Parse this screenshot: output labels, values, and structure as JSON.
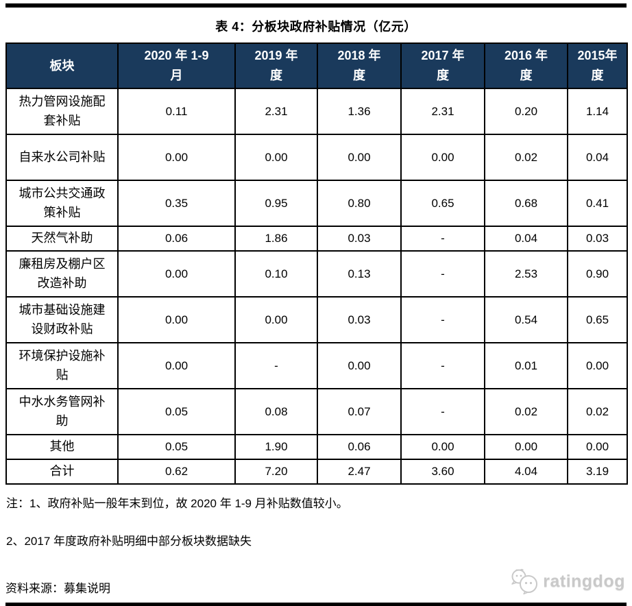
{
  "title": "表 4：分板块政府补贴情况（亿元）",
  "table": {
    "header": {
      "col0": "板块",
      "periods": [
        {
          "line1": "2020 年 1-9",
          "line2": "月"
        },
        {
          "line1": "2019 年",
          "line2": "度"
        },
        {
          "line1": "2018 年",
          "line2": "度"
        },
        {
          "line1": "2017 年",
          "line2": "度"
        },
        {
          "line1": "2016 年",
          "line2": "度"
        },
        {
          "line1": "2015年",
          "line2": "度"
        }
      ]
    },
    "rows": [
      {
        "label": "热力管网设施配套补贴",
        "values": [
          "0.11",
          "2.31",
          "1.36",
          "2.31",
          "0.20",
          "1.14"
        ],
        "tall": true
      },
      {
        "label": "自来水公司补贴",
        "values": [
          "0.00",
          "0.00",
          "0.00",
          "0.00",
          "0.02",
          "0.04"
        ],
        "tall": true
      },
      {
        "label": "城市公共交通政策补贴",
        "values": [
          "0.35",
          "0.95",
          "0.80",
          "0.65",
          "0.68",
          "0.41"
        ],
        "tall": true
      },
      {
        "label": "天然气补助",
        "values": [
          "0.06",
          "1.86",
          "0.03",
          "-",
          "0.04",
          "0.03"
        ],
        "tall": false
      },
      {
        "label": "廉租房及棚户区改造补助",
        "values": [
          "0.00",
          "0.10",
          "0.13",
          "-",
          "2.53",
          "0.90"
        ],
        "tall": true
      },
      {
        "label": "城市基础设施建设财政补贴",
        "values": [
          "0.00",
          "0.00",
          "0.03",
          "-",
          "0.54",
          "0.65"
        ],
        "tall": true
      },
      {
        "label": "环境保护设施补贴",
        "values": [
          "0.00",
          "-",
          "0.00",
          "-",
          "0.01",
          "0.00"
        ],
        "tall": true
      },
      {
        "label": "中水水务管网补助",
        "values": [
          "0.05",
          "0.08",
          "0.07",
          "-",
          "0.02",
          "0.02"
        ],
        "tall": true
      },
      {
        "label": "其他",
        "values": [
          "0.05",
          "1.90",
          "0.06",
          "0.00",
          "0.00",
          "0.00"
        ],
        "tall": false
      },
      {
        "label": "合计",
        "values": [
          "0.62",
          "7.20",
          "2.47",
          "3.60",
          "4.04",
          "3.19"
        ],
        "tall": false
      }
    ]
  },
  "notes": {
    "note1": "注：1、政府补贴一般年末到位，故 2020 年 1-9 月补贴数值较小。",
    "note2": "2、2017 年度政府补贴明细中部分板块数据缺失",
    "source": "资料来源：募集说明"
  },
  "logo": {
    "text": "ratingdog",
    "icon": "dog-face-icon"
  },
  "colors": {
    "header_bg": "#1A3A5C",
    "header_text": "#ffffff",
    "border": "#000000",
    "logo_gray": "#c9c9c9"
  }
}
